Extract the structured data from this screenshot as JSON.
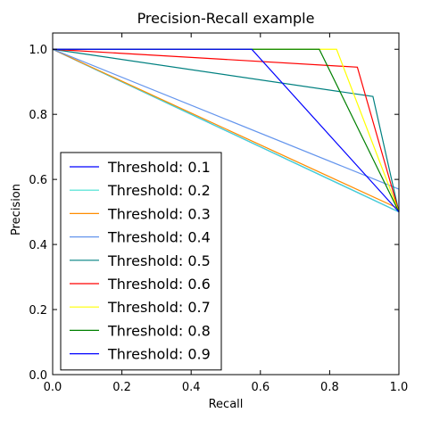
{
  "chart_data": {
    "type": "line",
    "title": "Precision-Recall example",
    "xlabel": "Recall",
    "ylabel": "Precision",
    "xlim": [
      0.0,
      1.0
    ],
    "ylim": [
      0.0,
      1.05
    ],
    "xticks": [
      "0.0",
      "0.2",
      "0.4",
      "0.6",
      "0.8",
      "1.0"
    ],
    "yticks": [
      "0.0",
      "0.2",
      "0.4",
      "0.6",
      "0.8",
      "1.0"
    ],
    "legend_position": "lower-left",
    "grid": false,
    "series": [
      {
        "name": "Threshold: 0.1",
        "color": "#0000ff",
        "x": [
          0.0,
          1.0,
          1.0
        ],
        "y": [
          1.0,
          0.5,
          0.5
        ]
      },
      {
        "name": "Threshold: 0.2",
        "color": "#40e0d0",
        "x": [
          0.0,
          1.0,
          1.0
        ],
        "y": [
          1.0,
          0.5,
          0.5
        ]
      },
      {
        "name": "Threshold: 0.3",
        "color": "#ff8c00",
        "x": [
          0.0,
          1.0,
          1.0
        ],
        "y": [
          1.0,
          0.51,
          0.5
        ]
      },
      {
        "name": "Threshold: 0.4",
        "color": "#6495ed",
        "x": [
          0.0,
          1.0,
          1.0
        ],
        "y": [
          1.0,
          0.57,
          0.5
        ]
      },
      {
        "name": "Threshold: 0.5",
        "color": "#008080",
        "x": [
          0.0,
          0.925,
          1.0
        ],
        "y": [
          1.0,
          0.855,
          0.5
        ]
      },
      {
        "name": "Threshold: 0.6",
        "color": "#ff0000",
        "x": [
          0.0,
          0.88,
          1.0
        ],
        "y": [
          1.0,
          0.945,
          0.5
        ]
      },
      {
        "name": "Threshold: 0.7",
        "color": "#ffff00",
        "x": [
          0.0,
          0.82,
          1.0
        ],
        "y": [
          1.0,
          1.0,
          0.5
        ]
      },
      {
        "name": "Threshold: 0.8",
        "color": "#008000",
        "x": [
          0.0,
          0.77,
          1.0
        ],
        "y": [
          1.0,
          1.0,
          0.5
        ]
      },
      {
        "name": "Threshold: 0.9",
        "color": "#0000ff",
        "x": [
          0.0,
          0.575,
          1.0
        ],
        "y": [
          1.0,
          1.0,
          0.5
        ]
      }
    ]
  }
}
